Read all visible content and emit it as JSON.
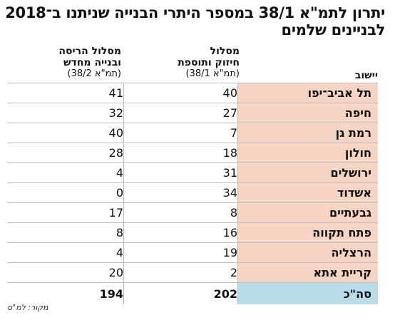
{
  "title": {
    "line1": "יתרון לתמ\"א 38/1 במספר היתרי הבנייה שניתנו ב־2018",
    "line2": "לבניינים שלמים"
  },
  "headers": {
    "city": "יישוב",
    "col1": {
      "line1": "מסלול",
      "line2": "חיזוק ותוספת",
      "line3": "(תמ\"א 38/1)"
    },
    "col2": {
      "line1": "מסלול הריסה",
      "line2": "ובנייה מחדש",
      "line3": "(תמ\"א 38/2)"
    }
  },
  "rows": [
    {
      "city": "תל אביב־יפו",
      "v1": "40",
      "v2": "41"
    },
    {
      "city": "חיפה",
      "v1": "27",
      "v2": "32"
    },
    {
      "city": "רמת גן",
      "v1": "7",
      "v2": "40"
    },
    {
      "city": "חולון",
      "v1": "18",
      "v2": "28"
    },
    {
      "city": "ירושלים",
      "v1": "31",
      "v2": "4"
    },
    {
      "city": "אשדוד",
      "v1": "34",
      "v2": "0"
    },
    {
      "city": "גבעתיים",
      "v1": "8",
      "v2": "17"
    },
    {
      "city": "פתח תקווה",
      "v1": "16",
      "v2": "8"
    },
    {
      "city": "הרצליה",
      "v1": "19",
      "v2": "4"
    },
    {
      "city": "קריית אתא",
      "v1": "2",
      "v2": "20"
    }
  ],
  "total": {
    "label": "סה\"כ",
    "v1": "202",
    "v2": "194"
  },
  "source": "מקור: למ\"ס",
  "colors": {
    "city_bg": "#f6d5c5",
    "total_bg": "#b8dcea"
  }
}
